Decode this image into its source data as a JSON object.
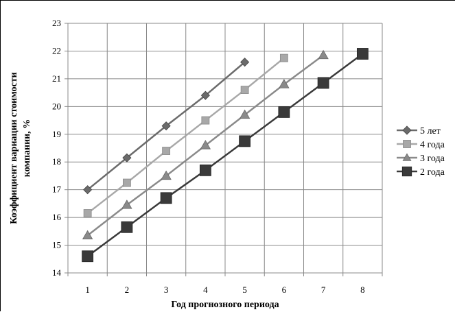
{
  "chart_data": {
    "type": "line",
    "xlabel": "Год прогнозного периода",
    "ylabel_lines": [
      "Коэффициент вариации стоимости",
      "компании, %"
    ],
    "x_ticks": [
      "1",
      "2",
      "3",
      "4",
      "5",
      "6",
      "7",
      "8"
    ],
    "ylim": [
      14,
      23
    ],
    "y_ticks": [
      "14",
      "15",
      "16",
      "17",
      "18",
      "19",
      "20",
      "21",
      "22",
      "23"
    ],
    "grid": true,
    "legend_position": "right",
    "series": [
      {
        "name": "5 лет",
        "marker": "diamond",
        "color": "#6b6b6b",
        "x": [
          1,
          2,
          3,
          4,
          5
        ],
        "values": [
          17.0,
          18.15,
          19.3,
          20.4,
          21.6
        ]
      },
      {
        "name": "4 года",
        "marker": "square-small",
        "color": "#a8a8a8",
        "x": [
          1,
          2,
          3,
          4,
          5,
          6
        ],
        "values": [
          16.15,
          17.25,
          18.4,
          19.5,
          20.6,
          21.75
        ]
      },
      {
        "name": "3 года",
        "marker": "triangle",
        "color": "#8a8a8a",
        "x": [
          1,
          2,
          3,
          4,
          5,
          6,
          7
        ],
        "values": [
          15.35,
          16.45,
          17.5,
          18.6,
          19.7,
          20.8,
          21.85
        ]
      },
      {
        "name": "2 года",
        "marker": "square-large",
        "color": "#3a3a3a",
        "x": [
          1,
          2,
          3,
          4,
          5,
          6,
          7,
          8
        ],
        "values": [
          14.6,
          15.65,
          16.7,
          17.7,
          18.75,
          19.8,
          20.85,
          21.9
        ]
      }
    ]
  }
}
